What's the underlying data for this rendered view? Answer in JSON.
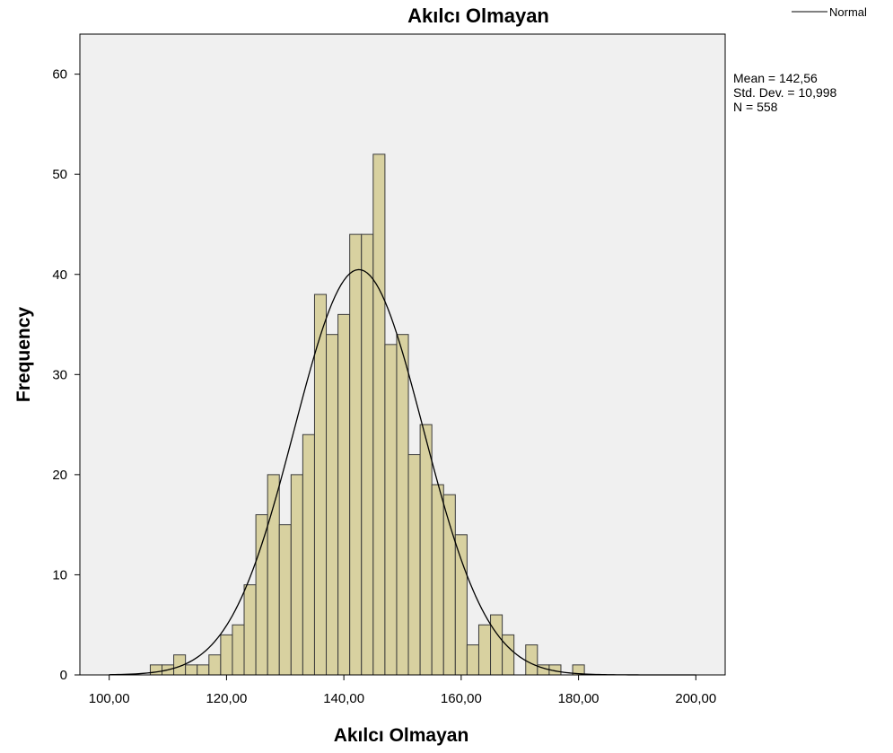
{
  "chart_data": {
    "type": "histogram",
    "title": "Akılcı Olmayan",
    "xlabel": "Akılcı Olmayan",
    "ylabel": "Frequency",
    "xlim": [
      95,
      205
    ],
    "ylim": [
      0,
      64
    ],
    "x_ticks": [
      100,
      120,
      140,
      160,
      180,
      200
    ],
    "x_tick_labels": [
      "100,00",
      "120,00",
      "140,00",
      "160,00",
      "180,00",
      "200,00"
    ],
    "y_ticks": [
      0,
      10,
      20,
      30,
      40,
      50,
      60
    ],
    "y_tick_labels": [
      "0",
      "10",
      "20",
      "30",
      "40",
      "50",
      "60"
    ],
    "bin_width": 2,
    "bins": [
      {
        "start": 107,
        "count": 1
      },
      {
        "start": 109,
        "count": 1
      },
      {
        "start": 111,
        "count": 2
      },
      {
        "start": 113,
        "count": 1
      },
      {
        "start": 115,
        "count": 1
      },
      {
        "start": 117,
        "count": 2
      },
      {
        "start": 119,
        "count": 4
      },
      {
        "start": 121,
        "count": 5
      },
      {
        "start": 123,
        "count": 9
      },
      {
        "start": 125,
        "count": 16
      },
      {
        "start": 127,
        "count": 20
      },
      {
        "start": 129,
        "count": 15
      },
      {
        "start": 131,
        "count": 20
      },
      {
        "start": 133,
        "count": 24
      },
      {
        "start": 135,
        "count": 38
      },
      {
        "start": 137,
        "count": 34
      },
      {
        "start": 139,
        "count": 36
      },
      {
        "start": 141,
        "count": 44
      },
      {
        "start": 143,
        "count": 44
      },
      {
        "start": 145,
        "count": 52
      },
      {
        "start": 147,
        "count": 33
      },
      {
        "start": 149,
        "count": 34
      },
      {
        "start": 151,
        "count": 22
      },
      {
        "start": 153,
        "count": 25
      },
      {
        "start": 155,
        "count": 19
      },
      {
        "start": 157,
        "count": 18
      },
      {
        "start": 159,
        "count": 14
      },
      {
        "start": 161,
        "count": 3
      },
      {
        "start": 163,
        "count": 5
      },
      {
        "start": 165,
        "count": 6
      },
      {
        "start": 167,
        "count": 4
      },
      {
        "start": 169,
        "count": 0
      },
      {
        "start": 171,
        "count": 3
      },
      {
        "start": 173,
        "count": 1
      },
      {
        "start": 175,
        "count": 1
      },
      {
        "start": 177,
        "count": 0
      },
      {
        "start": 179,
        "count": 1
      }
    ],
    "normal_curve": {
      "mean": 142.56,
      "std_dev": 10.998,
      "n": 558
    },
    "legend": [
      {
        "name": "Normal",
        "style": "line",
        "position": "top-right"
      }
    ],
    "stats_text": [
      "Mean = 142,56",
      "Std. Dev. = 10,998",
      "N = 558"
    ],
    "grid": false,
    "colors": {
      "bar_fill": "#d8d1a0",
      "bar_stroke": "#3a3a3a",
      "plot_background": "#f0f0f0",
      "curve": "#000000"
    }
  }
}
